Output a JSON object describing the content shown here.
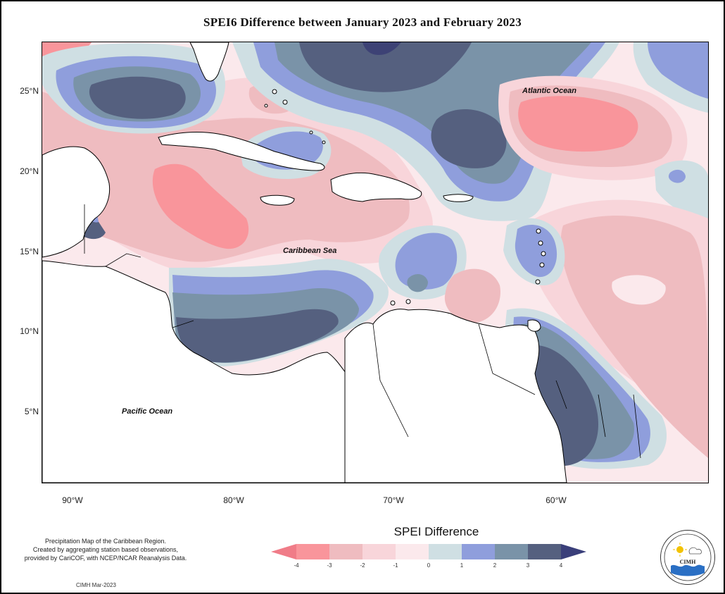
{
  "title": "SPEI6 Difference between January 2023 and February 2023",
  "map": {
    "latitude_labels": [
      "25°N",
      "20°N",
      "15°N",
      "10°N",
      "5°N"
    ],
    "longitude_labels": [
      "90°W",
      "80°W",
      "70°W",
      "60°W"
    ],
    "place_labels": {
      "atlantic": "Atlantic Ocean",
      "caribbean": "Caribbean Sea",
      "pacific": "Pacific Ocean"
    },
    "palette": {
      "le_-3": "#f9959b",
      "-3_-2": "#efbcc0",
      "-2_-1": "#f8d5da",
      "-1_0": "#fbe9ec",
      "0_1": "#cfdfe3",
      "1_2": "#8f9edc",
      "2_3": "#7a93a8",
      "ge_3": "#55607f",
      "land": "#ffffff"
    }
  },
  "legend": {
    "title": "SPEI Difference",
    "ticks": [
      "-4",
      "-3",
      "-2",
      "-1",
      "0",
      "1",
      "2",
      "3",
      "4"
    ],
    "colors": [
      "#f9959b",
      "#efbcc0",
      "#f8d5da",
      "#fbe9ec",
      "#cfdfe3",
      "#8f9edc",
      "#7a93a8",
      "#55607f"
    ],
    "arrow_left_color": "#f07c88",
    "arrow_right_color": "#3a3f7a"
  },
  "footer": {
    "line1": "Precipitation Map of the Caribbean Region.",
    "line2": "Created by aggregating station based observations,",
    "line3": "provided by CariCOF, with NCEP/NCAR Reanalysis Data.",
    "credit": "CIMH Mar-2023"
  },
  "logo": {
    "text": "CIMH",
    "icon": "cimh-logo-icon"
  }
}
